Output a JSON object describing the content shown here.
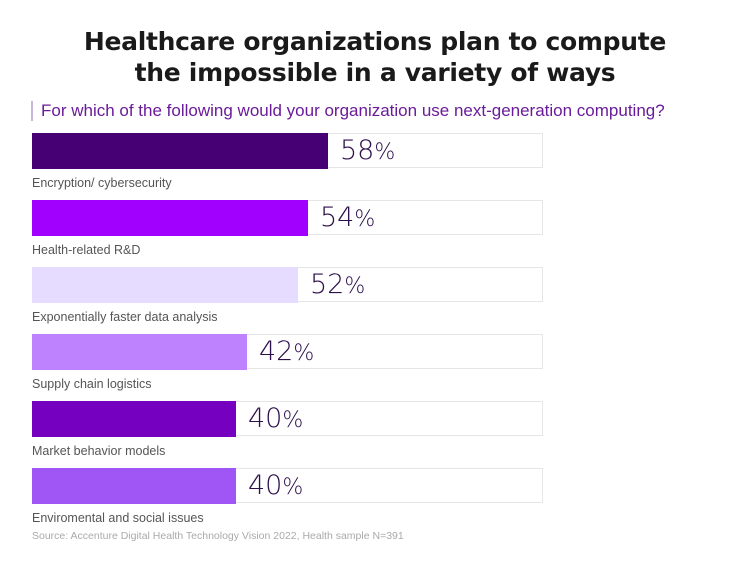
{
  "header": {
    "title_line1": "Healthcare organizations plan to compute",
    "title_line2": "the impossible in a variety of ways",
    "subtitle": "For which of the following would your organization use next-generation computing?"
  },
  "footer": {
    "source": "Source: Accenture Digital Health Technology Vision 2022, Health sample N=391"
  },
  "chart_data": {
    "type": "bar",
    "orientation": "horizontal",
    "title": "Healthcare organizations plan to compute the impossible in a variety of ways",
    "subtitle": "For which of the following would your organization use next-generation computing?",
    "xlabel": "",
    "ylabel": "",
    "xlim": [
      0,
      100
    ],
    "unit": "%",
    "grid": false,
    "legend": "none",
    "categories": [
      "Encryption/ cybersecurity",
      "Health-related R&D",
      "Exponentially faster data analysis",
      "Supply chain logistics",
      "Market behavior models",
      "Enviromental and social issues"
    ],
    "values": [
      58,
      54,
      52,
      42,
      40,
      40
    ],
    "value_labels": [
      "58",
      "54",
      "52",
      "42",
      "40",
      "40"
    ],
    "colors": [
      "#460073",
      "#a100ff",
      "#e6dcff",
      "#be82ff",
      "#7500c0",
      "#a055f5"
    ],
    "source": "Source: Accenture Digital Health Technology Vision 2022, Health sample N=391"
  },
  "style": {
    "track_border": "#e6e6e6",
    "value_color": "#2d0f4a",
    "subtitle_color": "#6a1b9a"
  }
}
